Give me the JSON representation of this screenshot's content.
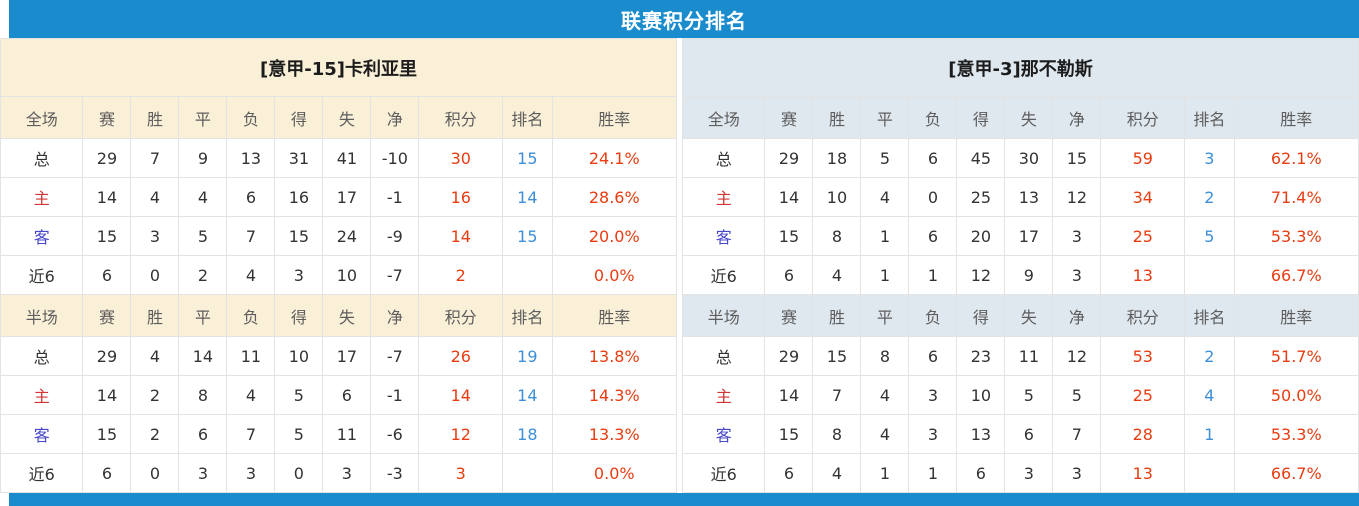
{
  "title": "联赛积分排名",
  "colors": {
    "accent": "#1a8ccd",
    "header_cream": "#faf0d8",
    "header_blue": "#dfe8ef",
    "row_alt": "#f4f4f4",
    "value_red": "#e83c11",
    "rank_blue": "#3d8fd8",
    "home_red": "#d13434",
    "away_blue": "#4747cc"
  },
  "column_headers": [
    "赛",
    "胜",
    "平",
    "负",
    "得",
    "失",
    "净",
    "积分",
    "排名",
    "胜率"
  ],
  "teams": [
    {
      "name": "[意甲-15]卡利亚里",
      "sections": [
        {
          "label": "全场",
          "rows": [
            {
              "label": "总",
              "type": "total",
              "stats": [
                "29",
                "7",
                "9",
                "13",
                "31",
                "41",
                "-10"
              ],
              "points": "30",
              "rank": "15",
              "rate": "24.1%"
            },
            {
              "label": "主",
              "type": "home",
              "stats": [
                "14",
                "4",
                "4",
                "6",
                "16",
                "17",
                "-1"
              ],
              "points": "16",
              "rank": "14",
              "rate": "28.6%"
            },
            {
              "label": "客",
              "type": "away",
              "stats": [
                "15",
                "3",
                "5",
                "7",
                "15",
                "24",
                "-9"
              ],
              "points": "14",
              "rank": "15",
              "rate": "20.0%"
            },
            {
              "label": "近6",
              "type": "recent",
              "stats": [
                "6",
                "0",
                "2",
                "4",
                "3",
                "10",
                "-7"
              ],
              "points": "2",
              "rank": "",
              "rate": "0.0%"
            }
          ]
        },
        {
          "label": "半场",
          "rows": [
            {
              "label": "总",
              "type": "total",
              "stats": [
                "29",
                "4",
                "14",
                "11",
                "10",
                "17",
                "-7"
              ],
              "points": "26",
              "rank": "19",
              "rate": "13.8%"
            },
            {
              "label": "主",
              "type": "home",
              "stats": [
                "14",
                "2",
                "8",
                "4",
                "5",
                "6",
                "-1"
              ],
              "points": "14",
              "rank": "14",
              "rate": "14.3%"
            },
            {
              "label": "客",
              "type": "away",
              "stats": [
                "15",
                "2",
                "6",
                "7",
                "5",
                "11",
                "-6"
              ],
              "points": "12",
              "rank": "18",
              "rate": "13.3%"
            },
            {
              "label": "近6",
              "type": "recent",
              "stats": [
                "6",
                "0",
                "3",
                "3",
                "0",
                "3",
                "-3"
              ],
              "points": "3",
              "rank": "",
              "rate": "0.0%"
            }
          ]
        }
      ]
    },
    {
      "name": "[意甲-3]那不勒斯",
      "sections": [
        {
          "label": "全场",
          "rows": [
            {
              "label": "总",
              "type": "total",
              "stats": [
                "29",
                "18",
                "5",
                "6",
                "45",
                "30",
                "15"
              ],
              "points": "59",
              "rank": "3",
              "rate": "62.1%"
            },
            {
              "label": "主",
              "type": "home",
              "stats": [
                "14",
                "10",
                "4",
                "0",
                "25",
                "13",
                "12"
              ],
              "points": "34",
              "rank": "2",
              "rate": "71.4%"
            },
            {
              "label": "客",
              "type": "away",
              "stats": [
                "15",
                "8",
                "1",
                "6",
                "20",
                "17",
                "3"
              ],
              "points": "25",
              "rank": "5",
              "rate": "53.3%"
            },
            {
              "label": "近6",
              "type": "recent",
              "stats": [
                "6",
                "4",
                "1",
                "1",
                "12",
                "9",
                "3"
              ],
              "points": "13",
              "rank": "",
              "rate": "66.7%"
            }
          ]
        },
        {
          "label": "半场",
          "rows": [
            {
              "label": "总",
              "type": "total",
              "stats": [
                "29",
                "15",
                "8",
                "6",
                "23",
                "11",
                "12"
              ],
              "points": "53",
              "rank": "2",
              "rate": "51.7%"
            },
            {
              "label": "主",
              "type": "home",
              "stats": [
                "14",
                "7",
                "4",
                "3",
                "10",
                "5",
                "5"
              ],
              "points": "25",
              "rank": "4",
              "rate": "50.0%"
            },
            {
              "label": "客",
              "type": "away",
              "stats": [
                "15",
                "8",
                "4",
                "3",
                "13",
                "6",
                "7"
              ],
              "points": "28",
              "rank": "1",
              "rate": "53.3%"
            },
            {
              "label": "近6",
              "type": "recent",
              "stats": [
                "6",
                "4",
                "1",
                "1",
                "6",
                "3",
                "3"
              ],
              "points": "13",
              "rank": "",
              "rate": "66.7%"
            }
          ]
        }
      ]
    }
  ]
}
